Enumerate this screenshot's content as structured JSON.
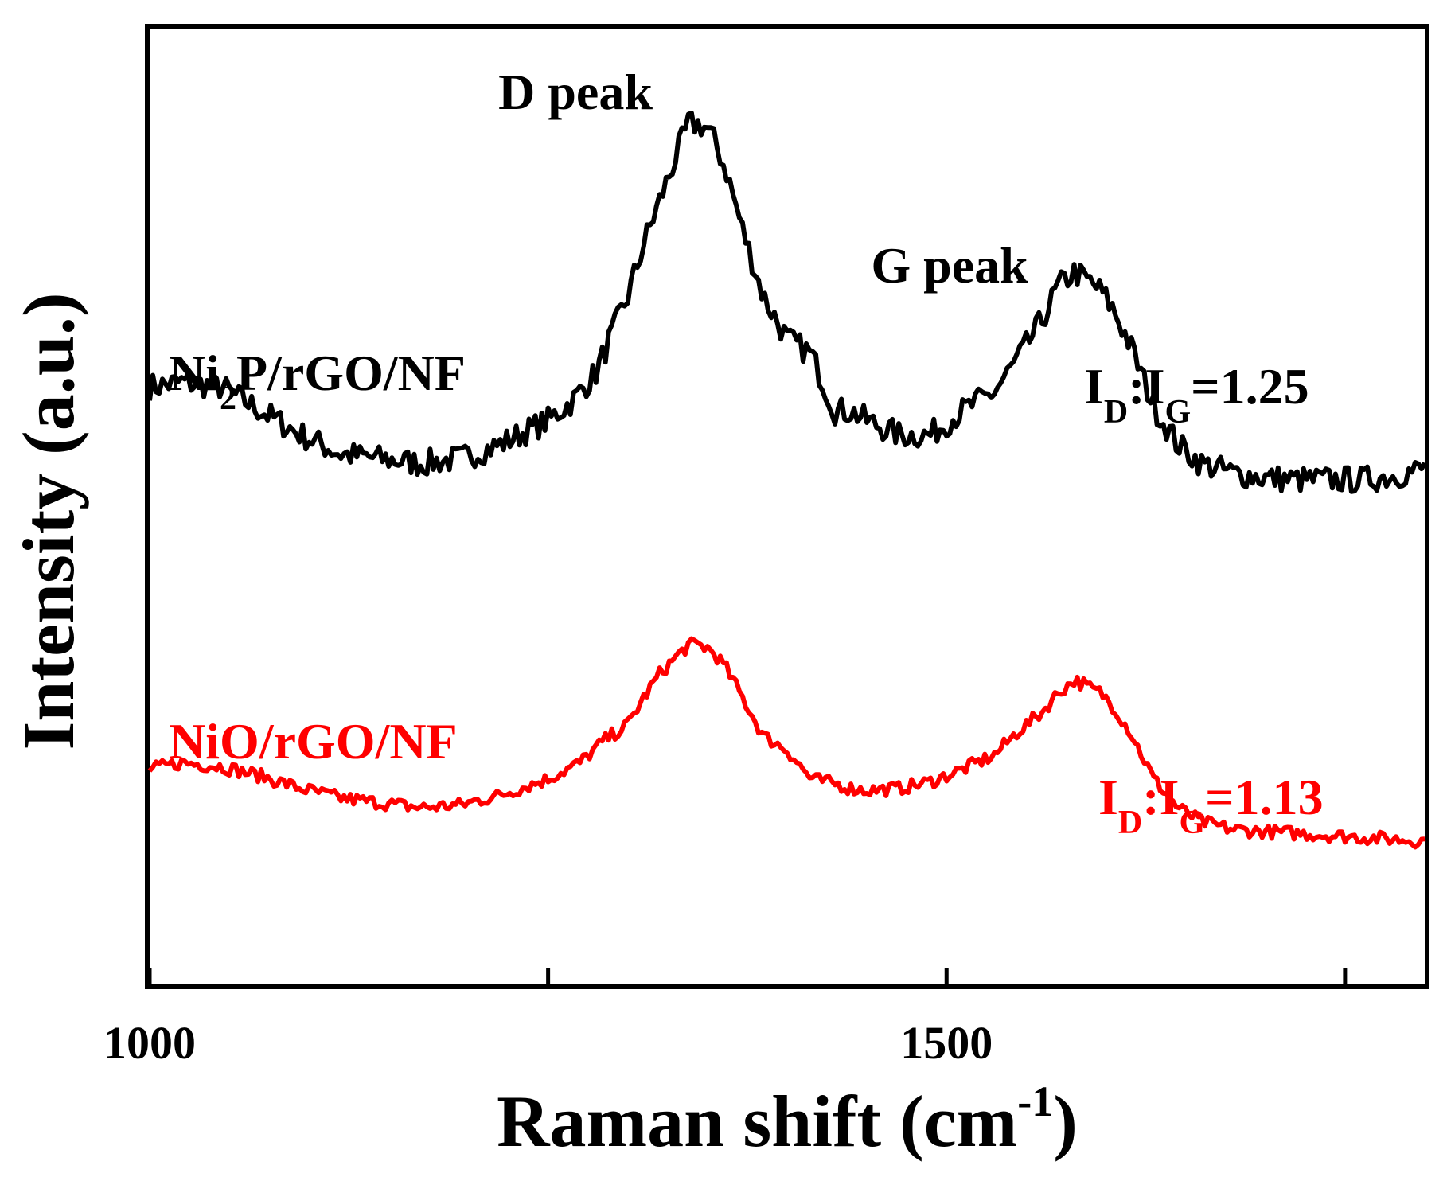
{
  "chart_data": {
    "type": "line",
    "title": "",
    "xlabel": "Raman shift (cm",
    "xlabel_sup": "-1",
    "xlabel_end": ")",
    "ylabel": "Intensity (a.u.)",
    "xlim": [
      1000,
      1800
    ],
    "ylim": [
      0,
      1
    ],
    "x_ticks": [
      1000,
      1250,
      1500,
      1750
    ],
    "x_tick_labels": [
      "1000",
      "",
      "1500",
      ""
    ],
    "y_ticks_shown": false,
    "grid": false,
    "series": [
      {
        "name": "Ni2P/rGO/NF",
        "color": "#000000",
        "x": [
          1000,
          1020,
          1045,
          1070,
          1095,
          1120,
          1145,
          1170,
          1195,
          1220,
          1250,
          1265,
          1280,
          1290,
          1300,
          1310,
          1320,
          1330,
          1338,
          1345,
          1350,
          1355,
          1362,
          1372,
          1385,
          1400,
          1415,
          1430,
          1440,
          1450,
          1470,
          1490,
          1510,
          1530,
          1545,
          1560,
          1570,
          1580,
          1585,
          1590,
          1597,
          1605,
          1615,
          1630,
          1645,
          1660,
          1680,
          1700,
          1720,
          1740,
          1760,
          1780,
          1800
        ],
        "y": [
          0.625,
          0.63,
          0.625,
          0.6,
          0.575,
          0.555,
          0.55,
          0.545,
          0.55,
          0.565,
          0.59,
          0.61,
          0.64,
          0.68,
          0.72,
          0.775,
          0.82,
          0.865,
          0.9,
          0.9,
          0.895,
          0.88,
          0.85,
          0.79,
          0.72,
          0.675,
          0.66,
          0.6,
          0.6,
          0.59,
          0.575,
          0.575,
          0.6,
          0.62,
          0.655,
          0.695,
          0.73,
          0.745,
          0.74,
          0.735,
          0.725,
          0.705,
          0.67,
          0.605,
          0.565,
          0.545,
          0.535,
          0.53,
          0.528,
          0.528,
          0.528,
          0.532,
          0.54
        ]
      },
      {
        "name": "NiO/rGO/NF",
        "color": "#ff0000",
        "x": [
          1000,
          1020,
          1045,
          1070,
          1095,
          1120,
          1145,
          1170,
          1195,
          1220,
          1250,
          1270,
          1285,
          1300,
          1310,
          1320,
          1330,
          1338,
          1345,
          1350,
          1355,
          1362,
          1372,
          1385,
          1400,
          1415,
          1430,
          1440,
          1450,
          1470,
          1490,
          1510,
          1530,
          1545,
          1560,
          1570,
          1580,
          1585,
          1590,
          1597,
          1605,
          1615,
          1630,
          1645,
          1660,
          1680,
          1700,
          1720,
          1740,
          1760,
          1780,
          1800
        ],
        "y": [
          0.225,
          0.232,
          0.228,
          0.218,
          0.205,
          0.195,
          0.19,
          0.185,
          0.188,
          0.198,
          0.215,
          0.232,
          0.255,
          0.272,
          0.3,
          0.325,
          0.342,
          0.355,
          0.355,
          0.352,
          0.345,
          0.33,
          0.3,
          0.26,
          0.245,
          0.215,
          0.21,
          0.205,
          0.203,
          0.205,
          0.212,
          0.225,
          0.24,
          0.265,
          0.285,
          0.305,
          0.318,
          0.315,
          0.31,
          0.305,
          0.29,
          0.265,
          0.215,
          0.185,
          0.17,
          0.162,
          0.16,
          0.158,
          0.156,
          0.154,
          0.152,
          0.15
        ]
      }
    ],
    "annotations": {
      "d_peak": "D peak",
      "g_peak": "G peak",
      "ni2p_label": {
        "a": "Ni",
        "sub": "2",
        "b": "P/rGO/NF"
      },
      "nio_label": "NiO/rGO/NF",
      "ratio_black": {
        "i1": "I",
        "s1": "D",
        "colon": ":I",
        "s2": "G",
        "val": "=1.25"
      },
      "ratio_red": {
        "i1": "I",
        "s1": "D",
        "colon": ":I",
        "s2": "G",
        "val": "=1.13"
      }
    }
  }
}
